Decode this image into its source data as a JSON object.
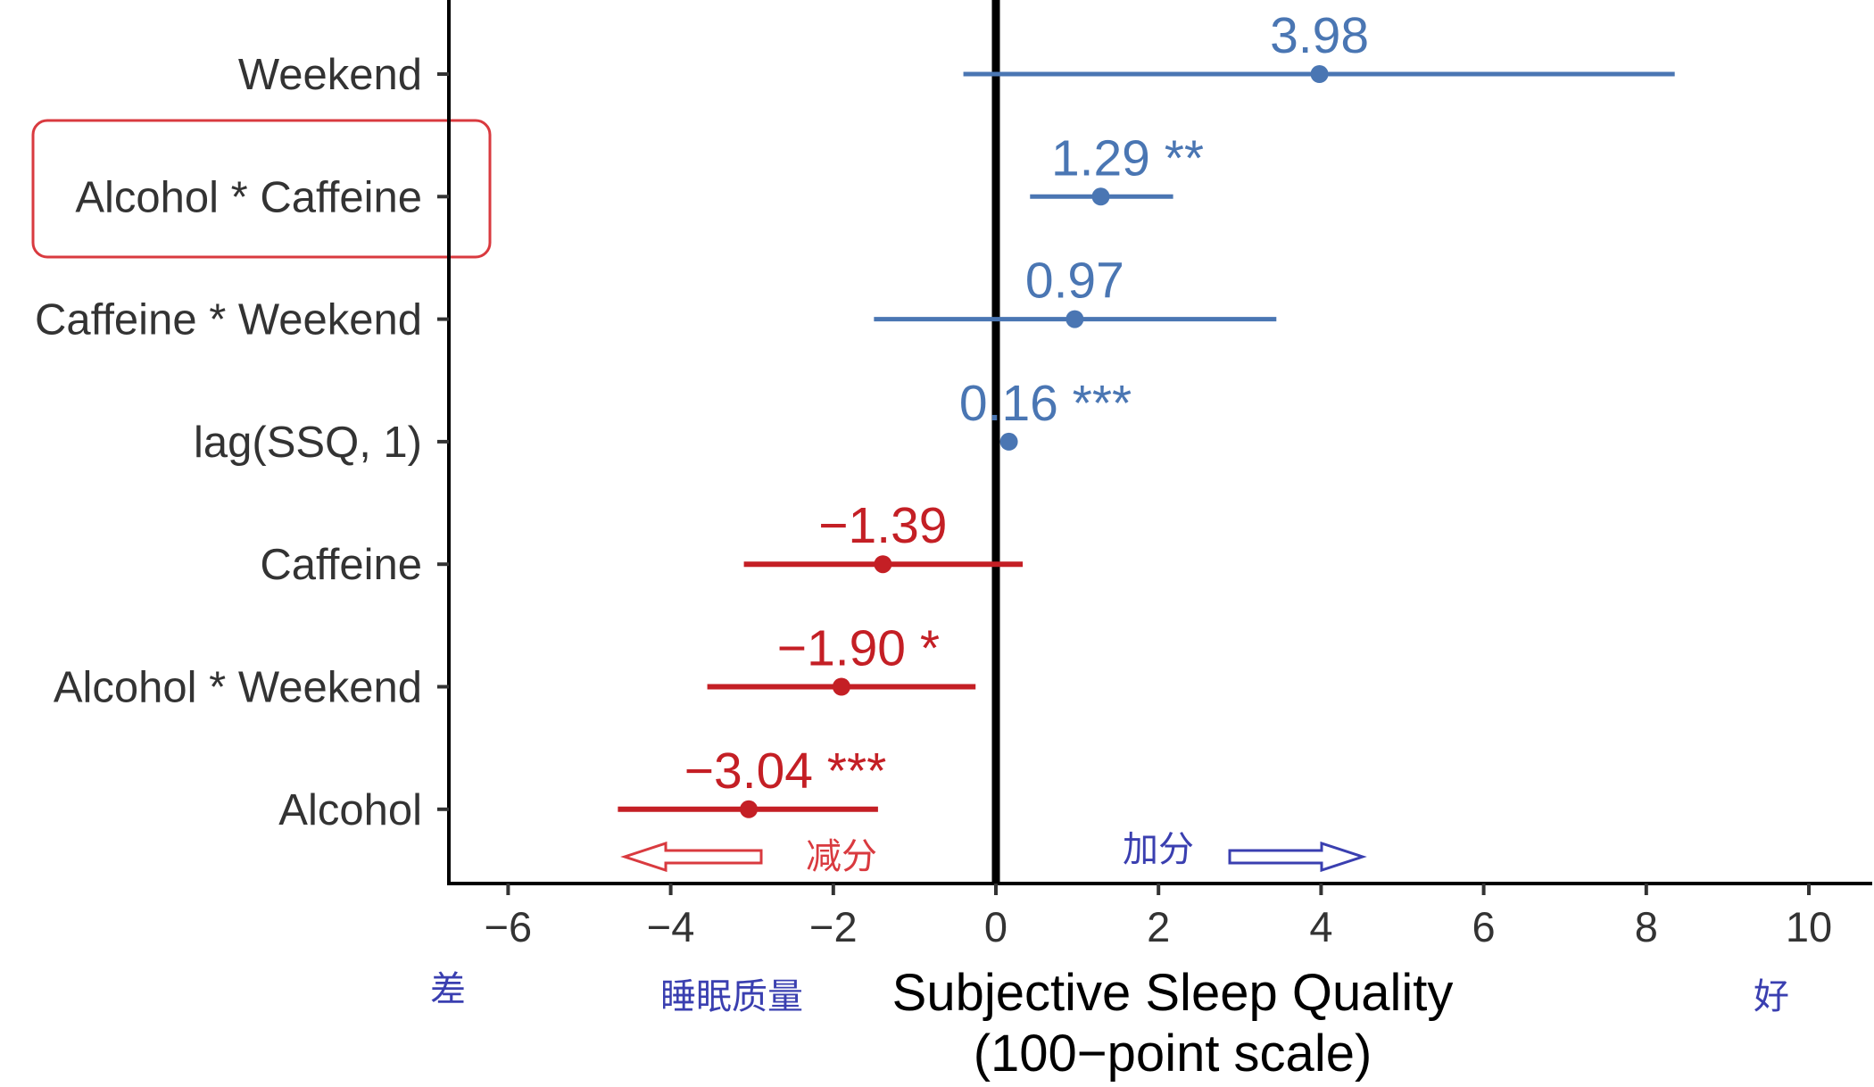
{
  "chart_data": {
    "type": "forest",
    "xlabel_line1": "Subjective Sleep Quality",
    "xlabel_line2": "(100−point scale)",
    "xlim": [
      -6.8,
      10.8
    ],
    "xticks": [
      -6,
      -4,
      -2,
      0,
      2,
      4,
      6,
      8,
      10
    ],
    "xtick_labels": [
      "−6",
      "−4",
      "−2",
      "0",
      "2",
      "4",
      "6",
      "8",
      "10"
    ],
    "reference_line": 0,
    "highlighted_term": "Alcohol * Caffeine",
    "colors": {
      "positive": "#4a76b3",
      "negative": "#c41f25",
      "highlight_box": "#d93a3f",
      "annotation_blue": "#3a3fb0",
      "annotation_red": "#d93a3f"
    },
    "terms": [
      {
        "label": "Weekend",
        "estimate": 3.98,
        "ci_low": -0.4,
        "ci_high": 8.35,
        "display": "3.98",
        "stars": "",
        "sign": "positive"
      },
      {
        "label": "Alcohol * Caffeine",
        "estimate": 1.29,
        "ci_low": 0.42,
        "ci_high": 2.18,
        "display": "1.29",
        "stars": "**",
        "sign": "positive"
      },
      {
        "label": "Caffeine * Weekend",
        "estimate": 0.97,
        "ci_low": -1.5,
        "ci_high": 3.45,
        "display": "0.97",
        "stars": "",
        "sign": "positive"
      },
      {
        "label": "lag(SSQ, 1)",
        "estimate": 0.16,
        "ci_low": 0.09,
        "ci_high": 0.23,
        "display": "0.16",
        "stars": "***",
        "sign": "positive"
      },
      {
        "label": "Caffeine",
        "estimate": -1.39,
        "ci_low": -3.1,
        "ci_high": 0.33,
        "display": "−1.39",
        "stars": "",
        "sign": "negative"
      },
      {
        "label": "Alcohol * Weekend",
        "estimate": -1.9,
        "ci_low": -3.55,
        "ci_high": -0.25,
        "display": "−1.90",
        "stars": "*",
        "sign": "negative"
      },
      {
        "label": "Alcohol",
        "estimate": -3.04,
        "ci_low": -4.65,
        "ci_high": -1.45,
        "display": "−3.04",
        "stars": "***",
        "sign": "negative"
      }
    ]
  },
  "annotations": {
    "decrease": "减分",
    "increase": "加分",
    "worse": "差",
    "better": "好",
    "sleep_quality": "睡眠质量"
  }
}
